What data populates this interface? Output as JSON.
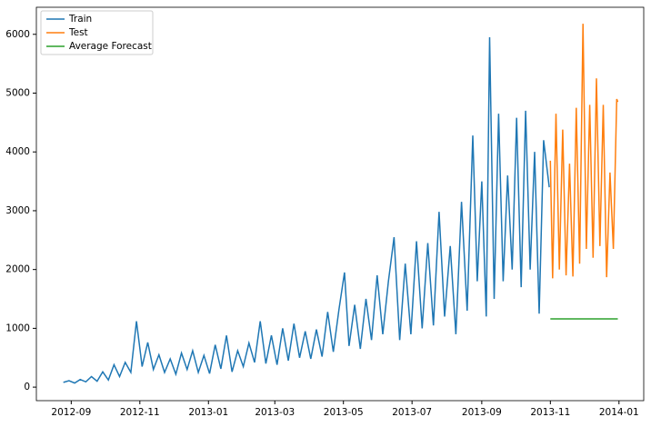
{
  "chart_data": {
    "type": "line",
    "series": [
      {
        "name": "Train",
        "color": "#1f77b4",
        "x": [
          "2012-08-25",
          "2012-08-30",
          "2012-09-04",
          "2012-09-09",
          "2012-09-14",
          "2012-09-19",
          "2012-09-24",
          "2012-09-29",
          "2012-10-04",
          "2012-10-09",
          "2012-10-14",
          "2012-10-19",
          "2012-10-24",
          "2012-10-29",
          "2012-11-03",
          "2012-11-08",
          "2012-11-13",
          "2012-11-18",
          "2012-11-23",
          "2012-11-28",
          "2012-12-03",
          "2012-12-08",
          "2012-12-13",
          "2012-12-18",
          "2012-12-23",
          "2012-12-28",
          "2013-01-02",
          "2013-01-07",
          "2013-01-12",
          "2013-01-17",
          "2013-01-22",
          "2013-01-27",
          "2013-02-01",
          "2013-02-06",
          "2013-02-11",
          "2013-02-16",
          "2013-02-21",
          "2013-02-26",
          "2013-03-03",
          "2013-03-08",
          "2013-03-13",
          "2013-03-18",
          "2013-03-23",
          "2013-03-28",
          "2013-04-02",
          "2013-04-07",
          "2013-04-12",
          "2013-04-17",
          "2013-04-22",
          "2013-04-27",
          "2013-05-02",
          "2013-05-06",
          "2013-05-11",
          "2013-05-16",
          "2013-05-21",
          "2013-05-26",
          "2013-05-31",
          "2013-06-05",
          "2013-06-10",
          "2013-06-15",
          "2013-06-20",
          "2013-06-25",
          "2013-06-30",
          "2013-07-05",
          "2013-07-10",
          "2013-07-15",
          "2013-07-20",
          "2013-07-25",
          "2013-07-30",
          "2013-08-04",
          "2013-08-09",
          "2013-08-14",
          "2013-08-19",
          "2013-08-24",
          "2013-08-28",
          "2013-09-01",
          "2013-09-05",
          "2013-09-08",
          "2013-09-12",
          "2013-09-16",
          "2013-09-20",
          "2013-09-24",
          "2013-09-28",
          "2013-10-02",
          "2013-10-06",
          "2013-10-10",
          "2013-10-14",
          "2013-10-18",
          "2013-10-22",
          "2013-10-26",
          "2013-10-31"
        ],
        "values": [
          80,
          110,
          70,
          130,
          90,
          180,
          100,
          260,
          120,
          380,
          180,
          420,
          250,
          1120,
          350,
          760,
          300,
          550,
          250,
          480,
          220,
          580,
          300,
          620,
          250,
          540,
          230,
          720,
          310,
          880,
          260,
          620,
          350,
          750,
          420,
          1120,
          400,
          880,
          380,
          1000,
          450,
          1080,
          500,
          950,
          480,
          980,
          520,
          1280,
          600,
          1320,
          1950,
          700,
          1400,
          650,
          1500,
          800,
          1900,
          900,
          1800,
          2550,
          800,
          2100,
          900,
          2480,
          1000,
          2450,
          1050,
          2980,
          1200,
          2400,
          900,
          3150,
          1300,
          4280,
          1800,
          3500,
          1200,
          5950,
          1500,
          4650,
          1800,
          3600,
          2000,
          4580,
          1700,
          4700,
          2000,
          4000,
          1250,
          4200,
          3400
        ]
      },
      {
        "name": "Test",
        "color": "#ff7f0e",
        "x": [
          "2013-11-01",
          "2013-11-03",
          "2013-11-06",
          "2013-11-09",
          "2013-11-12",
          "2013-11-15",
          "2013-11-18",
          "2013-11-21",
          "2013-11-24",
          "2013-11-27",
          "2013-11-30",
          "2013-12-03",
          "2013-12-06",
          "2013-12-09",
          "2013-12-12",
          "2013-12-15",
          "2013-12-18",
          "2013-12-21",
          "2013-12-24",
          "2013-12-27",
          "2013-12-30",
          "2013-12-31"
        ],
        "values": [
          3850,
          1850,
          4650,
          2000,
          4380,
          1900,
          3800,
          1880,
          4750,
          2100,
          6180,
          2350,
          4800,
          2200,
          5250,
          2400,
          4800,
          1870,
          3650,
          2350,
          4900,
          4850
        ]
      },
      {
        "name": "Average Forecast",
        "color": "#2ca02c",
        "x": [
          "2013-11-01",
          "2013-12-31"
        ],
        "values": [
          1160,
          1160
        ]
      }
    ],
    "xlim": [
      "2012-08-01",
      "2014-01-23"
    ],
    "xticks": [
      {
        "value": "2012-09-01",
        "label": "2012-09"
      },
      {
        "value": "2012-11-01",
        "label": "2012-11"
      },
      {
        "value": "2013-01-01",
        "label": "2013-01"
      },
      {
        "value": "2013-03-01",
        "label": "2013-03"
      },
      {
        "value": "2013-05-01",
        "label": "2013-05"
      },
      {
        "value": "2013-07-01",
        "label": "2013-07"
      },
      {
        "value": "2013-09-01",
        "label": "2013-09"
      },
      {
        "value": "2013-11-01",
        "label": "2013-11"
      },
      {
        "value": "2014-01-01",
        "label": "2014-01"
      }
    ],
    "ylim": [
      -230,
      6460
    ],
    "yticks": [
      0,
      1000,
      2000,
      3000,
      4000,
      5000,
      6000
    ],
    "legend": "upper left",
    "grid": false
  }
}
